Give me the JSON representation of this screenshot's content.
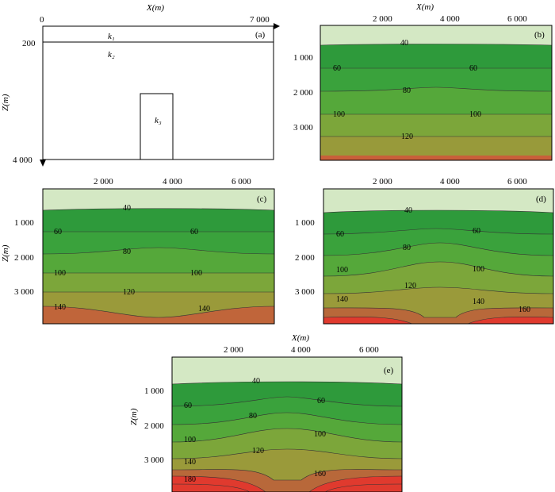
{
  "panel_a": {
    "letter": "(a)",
    "axis_x_title": "X(m)",
    "axis_y_title": "Z(m)",
    "x_start": "0",
    "x_end": "7 000",
    "y_200": "200",
    "y_4000": "4 000",
    "k1": "k₁",
    "k2": "k₂",
    "k3": "k₃"
  },
  "panel_b": {
    "letter": "(b)",
    "axis_x_title": "X(m)",
    "x_ticks": [
      "2 000",
      "4 000",
      "6 000"
    ],
    "y_ticks": [
      "1 000",
      "2 000",
      "3 000"
    ],
    "contour_labels": [
      "40",
      "60",
      "60",
      "80",
      "100",
      "100",
      "120"
    ]
  },
  "panel_c": {
    "letter": "(c)",
    "axis_y_title": "Z(m)",
    "x_ticks": [
      "2 000",
      "4 000",
      "6 000"
    ],
    "y_ticks": [
      "1 000",
      "2 000",
      "3 000"
    ],
    "contour_labels": [
      "40",
      "60",
      "60",
      "80",
      "100",
      "100",
      "120",
      "140",
      "140"
    ]
  },
  "panel_d": {
    "letter": "(d)",
    "x_ticks": [
      "2 000",
      "4 000",
      "6 000"
    ],
    "y_ticks": [
      "1 000",
      "2 000",
      "3 000"
    ],
    "contour_labels": [
      "40",
      "60",
      "60",
      "80",
      "100",
      "100",
      "120",
      "140",
      "140",
      "160"
    ]
  },
  "panel_e": {
    "letter": "(e)",
    "axis_x_title": "X(m)",
    "axis_y_title": "Z(m)",
    "x_ticks": [
      "2 000",
      "4 000",
      "6 000"
    ],
    "y_ticks": [
      "1 000",
      "2 000",
      "3 000"
    ],
    "contour_labels": [
      "40",
      "60",
      "60",
      "80",
      "100",
      "100",
      "120",
      "140",
      "160",
      "180"
    ]
  },
  "colors": {
    "c40": "#d4e8c4",
    "c60": "#2f9a3b",
    "c80": "#3ea33c",
    "c100": "#5aaa3a",
    "c120": "#80a83a",
    "c140": "#9b9a3a",
    "c160": "#b8693a",
    "c180": "#d14a32",
    "c200": "#e03a2e"
  }
}
